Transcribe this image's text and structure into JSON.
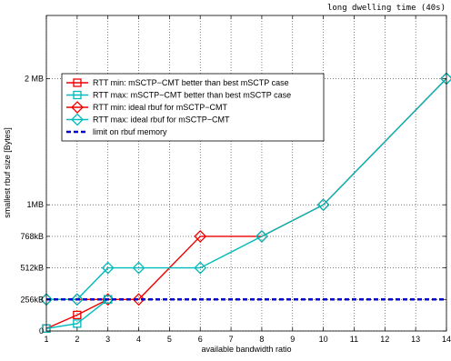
{
  "chart_data": {
    "type": "line",
    "title": "long dwelling time (40s)",
    "xlabel": "available bandwidth ratio",
    "ylabel": "smallest rbuf size [Bytes]",
    "xlim": [
      1,
      14
    ],
    "ylim": [
      0,
      2560
    ],
    "y_unit": "kB",
    "grid": true,
    "legend_position": "upper-left",
    "x_ticks": [
      1,
      2,
      3,
      4,
      5,
      6,
      7,
      8,
      9,
      10,
      11,
      12,
      13,
      14
    ],
    "y_ticks": [
      {
        "value": 0,
        "label": "0"
      },
      {
        "value": 256,
        "label": "256kB"
      },
      {
        "value": 512,
        "label": "512kB"
      },
      {
        "value": 768,
        "label": "768kB"
      },
      {
        "value": 1024,
        "label": "1MB"
      },
      {
        "value": 2048,
        "label": "2 MB"
      }
    ],
    "series": [
      {
        "name": "RTT min: mSCTP−CMT better than best mSCTP case",
        "color": "#ee0000",
        "marker": "square",
        "dashed": false,
        "x": [
          1,
          2,
          3
        ],
        "y": [
          20,
          130,
          256
        ]
      },
      {
        "name": "RTT max: mSCTP−CMT better than best mSCTP case",
        "color": "#00bbbb",
        "marker": "square",
        "dashed": false,
        "x": [
          1,
          2,
          3
        ],
        "y": [
          20,
          60,
          256
        ]
      },
      {
        "name": "RTT min: ideal rbuf for mSCTP−CMT",
        "color": "#ee0000",
        "marker": "diamond",
        "dashed": false,
        "x": [
          1,
          2,
          3,
          4,
          6,
          8,
          10,
          14
        ],
        "y": [
          256,
          256,
          256,
          256,
          768,
          768,
          1024,
          2048
        ]
      },
      {
        "name": "RTT max: ideal rbuf for mSCTP−CMT",
        "color": "#00bbbb",
        "marker": "diamond",
        "dashed": false,
        "x": [
          1,
          2,
          3,
          4,
          6,
          8,
          10,
          14
        ],
        "y": [
          256,
          256,
          512,
          512,
          512,
          768,
          1024,
          2048
        ]
      },
      {
        "name": "limit on rbuf memory",
        "color": "#0000dd",
        "marker": "none",
        "dashed": true,
        "x": [
          1,
          14
        ],
        "y": [
          256,
          256
        ]
      }
    ]
  }
}
